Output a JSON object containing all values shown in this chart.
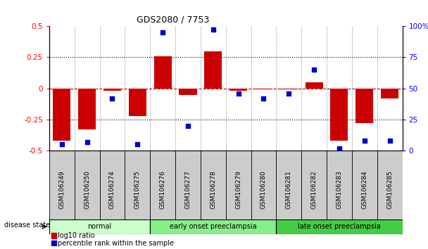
{
  "title": "GDS2080 / 7753",
  "samples": [
    "GSM106249",
    "GSM106250",
    "GSM106274",
    "GSM106275",
    "GSM106276",
    "GSM106277",
    "GSM106278",
    "GSM106279",
    "GSM106280",
    "GSM106281",
    "GSM106282",
    "GSM106283",
    "GSM106284",
    "GSM106285"
  ],
  "log10_ratio": [
    -0.42,
    -0.33,
    -0.02,
    -0.22,
    0.26,
    -0.05,
    0.3,
    -0.02,
    -0.01,
    -0.01,
    0.05,
    -0.42,
    -0.28,
    -0.08
  ],
  "percentile_rank": [
    5,
    7,
    42,
    5,
    95,
    20,
    97,
    46,
    42,
    46,
    65,
    2,
    8,
    8
  ],
  "groups": [
    {
      "label": "normal",
      "start": 0,
      "end": 4,
      "color": "#ccffcc"
    },
    {
      "label": "early onset preeclampsia",
      "start": 4,
      "end": 9,
      "color": "#88ee88"
    },
    {
      "label": "late onset preeclampsia",
      "start": 9,
      "end": 14,
      "color": "#44cc44"
    }
  ],
  "ylim_left": [
    -0.5,
    0.5
  ],
  "ylim_right": [
    0,
    100
  ],
  "left_ticks": [
    -0.5,
    -0.25,
    0,
    0.25,
    0.5
  ],
  "right_ticks": [
    0,
    25,
    50,
    75,
    100
  ],
  "left_tick_labels": [
    "-0.5",
    "-0.25",
    "0",
    "0.25",
    "0.5"
  ],
  "right_tick_labels": [
    "0",
    "25",
    "50",
    "75",
    "100%"
  ],
  "bar_color": "#cc0000",
  "dot_color": "#0000cc",
  "zero_line_color": "#cc0000",
  "dotted_line_color": "#000000",
  "background_color": "#ffffff",
  "legend_log10": "log10 ratio",
  "legend_percentile": "percentile rank within the sample",
  "disease_state_label": "disease state"
}
